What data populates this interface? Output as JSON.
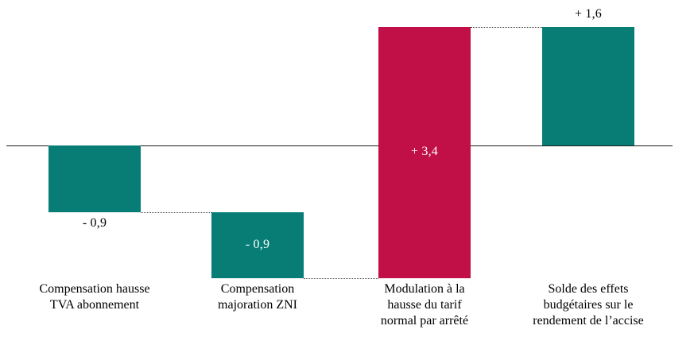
{
  "chart_data": {
    "type": "bar",
    "subtype": "waterfall",
    "title": "",
    "xlabel": "",
    "ylabel": "",
    "ylim": [
      -1.8,
      1.6
    ],
    "grid": false,
    "legend": false,
    "categories": [
      "Compensation hausse TVA abonnement",
      "Compensation majoration ZNI",
      "Modulation à la hausse du tarif normal par arrêté",
      "Solde des effets budgétaires sur le rendement de l’accise"
    ],
    "colors": {
      "teal": "#087D76",
      "crimson": "#C11048"
    },
    "bars": [
      {
        "category_lines": [
          "Compensation hausse",
          "TVA abonnement"
        ],
        "value": -0.9,
        "start": 0,
        "end": -0.9,
        "value_label": "- 0,9",
        "value_label_position": "below",
        "color_key": "teal"
      },
      {
        "category_lines": [
          "Compensation",
          "majoration ZNI"
        ],
        "value": -0.9,
        "start": -0.9,
        "end": -1.8,
        "value_label": "- 0,9",
        "value_label_position": "inside",
        "color_key": "teal"
      },
      {
        "category_lines": [
          "Modulation à la",
          "hausse du tarif",
          "normal par arrêté"
        ],
        "value": 3.4,
        "start": -1.8,
        "end": 1.6,
        "value_label": "+ 3,4",
        "value_label_position": "inside",
        "color_key": "crimson"
      },
      {
        "category_lines": [
          "Solde des effets",
          "budgétaires sur le",
          "rendement de l’accise"
        ],
        "value": 1.6,
        "start": 0,
        "end": 1.6,
        "value_label": "+ 1,6",
        "value_label_position": "above",
        "color_key": "teal"
      }
    ],
    "connectors": [
      {
        "from": 0,
        "to": 1,
        "at_value": -0.9
      },
      {
        "from": 1,
        "to": 2,
        "at_value": -1.8
      },
      {
        "from": 2,
        "to": 3,
        "at_value": 1.6
      }
    ]
  }
}
